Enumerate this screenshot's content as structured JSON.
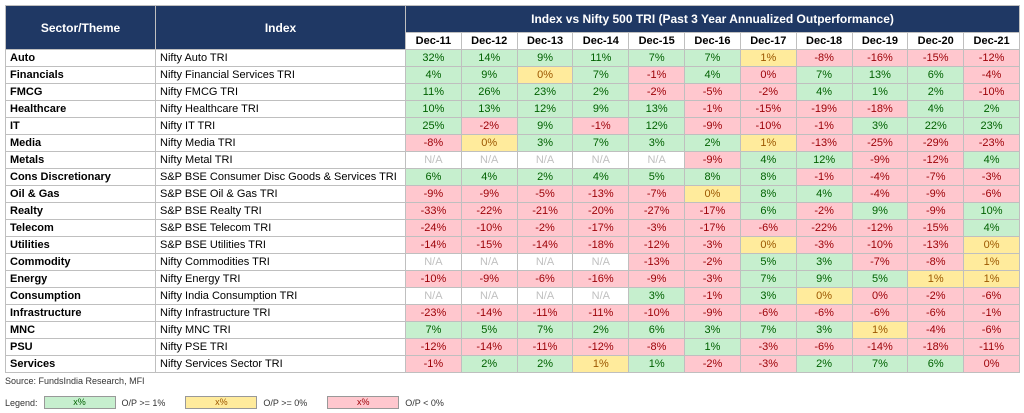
{
  "header": {
    "sector_label": "Sector/Theme",
    "index_label": "Index",
    "group_title": "Index vs Nifty 500 TRI (Past 3 Year Annualized Outperformance)",
    "years": [
      "Dec-11",
      "Dec-12",
      "Dec-13",
      "Dec-14",
      "Dec-15",
      "Dec-16",
      "Dec-17",
      "Dec-18",
      "Dec-19",
      "Dec-20",
      "Dec-21"
    ]
  },
  "rows": [
    {
      "sector": "Auto",
      "index": "Nifty Auto TRI",
      "cells": [
        {
          "text": "32%",
          "shade": "green"
        },
        {
          "text": "14%",
          "shade": "green"
        },
        {
          "text": "9%",
          "shade": "green"
        },
        {
          "text": "11%",
          "shade": "green"
        },
        {
          "text": "7%",
          "shade": "green"
        },
        {
          "text": "7%",
          "shade": "green"
        },
        {
          "text": "1%",
          "shade": "yellow"
        },
        {
          "text": "-8%",
          "shade": "red"
        },
        {
          "text": "-16%",
          "shade": "red"
        },
        {
          "text": "-15%",
          "shade": "red"
        },
        {
          "text": "-12%",
          "shade": "red"
        }
      ]
    },
    {
      "sector": "Financials",
      "index": "Nifty Financial Services TRI",
      "cells": [
        {
          "text": "4%",
          "shade": "green"
        },
        {
          "text": "9%",
          "shade": "green"
        },
        {
          "text": "0%",
          "shade": "yellow"
        },
        {
          "text": "7%",
          "shade": "green"
        },
        {
          "text": "-1%",
          "shade": "red"
        },
        {
          "text": "4%",
          "shade": "green"
        },
        {
          "text": "0%",
          "shade": "red"
        },
        {
          "text": "7%",
          "shade": "green"
        },
        {
          "text": "13%",
          "shade": "green"
        },
        {
          "text": "6%",
          "shade": "green"
        },
        {
          "text": "-4%",
          "shade": "red"
        }
      ]
    },
    {
      "sector": "FMCG",
      "index": "Nifty FMCG TRI",
      "cells": [
        {
          "text": "11%",
          "shade": "green"
        },
        {
          "text": "26%",
          "shade": "green"
        },
        {
          "text": "23%",
          "shade": "green"
        },
        {
          "text": "2%",
          "shade": "green"
        },
        {
          "text": "-2%",
          "shade": "red"
        },
        {
          "text": "-5%",
          "shade": "red"
        },
        {
          "text": "-2%",
          "shade": "red"
        },
        {
          "text": "4%",
          "shade": "green"
        },
        {
          "text": "1%",
          "shade": "green"
        },
        {
          "text": "2%",
          "shade": "green"
        },
        {
          "text": "-10%",
          "shade": "red"
        }
      ]
    },
    {
      "sector": "Healthcare",
      "index": "Nifty Healthcare TRI",
      "cells": [
        {
          "text": "10%",
          "shade": "green"
        },
        {
          "text": "13%",
          "shade": "green"
        },
        {
          "text": "12%",
          "shade": "green"
        },
        {
          "text": "9%",
          "shade": "green"
        },
        {
          "text": "13%",
          "shade": "green"
        },
        {
          "text": "-1%",
          "shade": "red"
        },
        {
          "text": "-15%",
          "shade": "red"
        },
        {
          "text": "-19%",
          "shade": "red"
        },
        {
          "text": "-18%",
          "shade": "red"
        },
        {
          "text": "4%",
          "shade": "green"
        },
        {
          "text": "2%",
          "shade": "green"
        }
      ]
    },
    {
      "sector": "IT",
      "index": "Nifty IT TRI",
      "cells": [
        {
          "text": "25%",
          "shade": "green"
        },
        {
          "text": "-2%",
          "shade": "red"
        },
        {
          "text": "9%",
          "shade": "green"
        },
        {
          "text": "-1%",
          "shade": "red"
        },
        {
          "text": "12%",
          "shade": "green"
        },
        {
          "text": "-9%",
          "shade": "red"
        },
        {
          "text": "-10%",
          "shade": "red"
        },
        {
          "text": "-1%",
          "shade": "red"
        },
        {
          "text": "3%",
          "shade": "green"
        },
        {
          "text": "22%",
          "shade": "green"
        },
        {
          "text": "23%",
          "shade": "green"
        }
      ]
    },
    {
      "sector": "Media",
      "index": "Nifty Media TRI",
      "cells": [
        {
          "text": "-8%",
          "shade": "red"
        },
        {
          "text": "0%",
          "shade": "yellow"
        },
        {
          "text": "3%",
          "shade": "green"
        },
        {
          "text": "7%",
          "shade": "green"
        },
        {
          "text": "3%",
          "shade": "green"
        },
        {
          "text": "2%",
          "shade": "green"
        },
        {
          "text": "1%",
          "shade": "yellow"
        },
        {
          "text": "-13%",
          "shade": "red"
        },
        {
          "text": "-25%",
          "shade": "red"
        },
        {
          "text": "-29%",
          "shade": "red"
        },
        {
          "text": "-23%",
          "shade": "red"
        }
      ]
    },
    {
      "sector": "Metals",
      "index": "Nifty Metal TRI",
      "cells": [
        {
          "text": "N/A",
          "shade": "none"
        },
        {
          "text": "N/A",
          "shade": "none"
        },
        {
          "text": "N/A",
          "shade": "none"
        },
        {
          "text": "N/A",
          "shade": "none"
        },
        {
          "text": "N/A",
          "shade": "none"
        },
        {
          "text": "-9%",
          "shade": "red"
        },
        {
          "text": "4%",
          "shade": "green"
        },
        {
          "text": "12%",
          "shade": "green"
        },
        {
          "text": "-9%",
          "shade": "red"
        },
        {
          "text": "-12%",
          "shade": "red"
        },
        {
          "text": "4%",
          "shade": "green"
        }
      ]
    },
    {
      "sector": "Cons Discretionary",
      "index": "S&P BSE Consumer Disc Goods & Services TRI",
      "cells": [
        {
          "text": "6%",
          "shade": "green"
        },
        {
          "text": "4%",
          "shade": "green"
        },
        {
          "text": "2%",
          "shade": "green"
        },
        {
          "text": "4%",
          "shade": "green"
        },
        {
          "text": "5%",
          "shade": "green"
        },
        {
          "text": "8%",
          "shade": "green"
        },
        {
          "text": "8%",
          "shade": "green"
        },
        {
          "text": "-1%",
          "shade": "red"
        },
        {
          "text": "-4%",
          "shade": "red"
        },
        {
          "text": "-7%",
          "shade": "red"
        },
        {
          "text": "-3%",
          "shade": "red"
        }
      ]
    },
    {
      "sector": "Oil & Gas",
      "index": "S&P BSE Oil & Gas TRI",
      "cells": [
        {
          "text": "-9%",
          "shade": "red"
        },
        {
          "text": "-9%",
          "shade": "red"
        },
        {
          "text": "-5%",
          "shade": "red"
        },
        {
          "text": "-13%",
          "shade": "red"
        },
        {
          "text": "-7%",
          "shade": "red"
        },
        {
          "text": "0%",
          "shade": "yellow"
        },
        {
          "text": "8%",
          "shade": "green"
        },
        {
          "text": "4%",
          "shade": "green"
        },
        {
          "text": "-4%",
          "shade": "red"
        },
        {
          "text": "-9%",
          "shade": "red"
        },
        {
          "text": "-6%",
          "shade": "red"
        }
      ]
    },
    {
      "sector": "Realty",
      "index": "S&P BSE Realty TRI",
      "cells": [
        {
          "text": "-33%",
          "shade": "red"
        },
        {
          "text": "-22%",
          "shade": "red"
        },
        {
          "text": "-21%",
          "shade": "red"
        },
        {
          "text": "-20%",
          "shade": "red"
        },
        {
          "text": "-27%",
          "shade": "red"
        },
        {
          "text": "-17%",
          "shade": "red"
        },
        {
          "text": "6%",
          "shade": "green"
        },
        {
          "text": "-2%",
          "shade": "red"
        },
        {
          "text": "9%",
          "shade": "green"
        },
        {
          "text": "-9%",
          "shade": "red"
        },
        {
          "text": "10%",
          "shade": "green"
        }
      ]
    },
    {
      "sector": "Telecom",
      "index": "S&P BSE Telecom TRI",
      "cells": [
        {
          "text": "-24%",
          "shade": "red"
        },
        {
          "text": "-10%",
          "shade": "red"
        },
        {
          "text": "-2%",
          "shade": "red"
        },
        {
          "text": "-17%",
          "shade": "red"
        },
        {
          "text": "-3%",
          "shade": "red"
        },
        {
          "text": "-17%",
          "shade": "red"
        },
        {
          "text": "-6%",
          "shade": "red"
        },
        {
          "text": "-22%",
          "shade": "red"
        },
        {
          "text": "-12%",
          "shade": "red"
        },
        {
          "text": "-15%",
          "shade": "red"
        },
        {
          "text": "4%",
          "shade": "green"
        }
      ]
    },
    {
      "sector": "Utilities",
      "index": "S&P BSE Utilities TRI",
      "cells": [
        {
          "text": "-14%",
          "shade": "red"
        },
        {
          "text": "-15%",
          "shade": "red"
        },
        {
          "text": "-14%",
          "shade": "red"
        },
        {
          "text": "-18%",
          "shade": "red"
        },
        {
          "text": "-12%",
          "shade": "red"
        },
        {
          "text": "-3%",
          "shade": "red"
        },
        {
          "text": "0%",
          "shade": "yellow"
        },
        {
          "text": "-3%",
          "shade": "red"
        },
        {
          "text": "-10%",
          "shade": "red"
        },
        {
          "text": "-13%",
          "shade": "red"
        },
        {
          "text": "0%",
          "shade": "yellow"
        }
      ]
    },
    {
      "sector": "Commodity",
      "index": "Nifty Commodities TRI",
      "cells": [
        {
          "text": "N/A",
          "shade": "none"
        },
        {
          "text": "N/A",
          "shade": "none"
        },
        {
          "text": "N/A",
          "shade": "none"
        },
        {
          "text": "N/A",
          "shade": "none"
        },
        {
          "text": "-13%",
          "shade": "red"
        },
        {
          "text": "-2%",
          "shade": "red"
        },
        {
          "text": "5%",
          "shade": "green"
        },
        {
          "text": "3%",
          "shade": "green"
        },
        {
          "text": "-7%",
          "shade": "red"
        },
        {
          "text": "-8%",
          "shade": "red"
        },
        {
          "text": "1%",
          "shade": "yellow"
        }
      ]
    },
    {
      "sector": "Energy",
      "index": "Nifty Energy TRI",
      "cells": [
        {
          "text": "-10%",
          "shade": "red"
        },
        {
          "text": "-9%",
          "shade": "red"
        },
        {
          "text": "-6%",
          "shade": "red"
        },
        {
          "text": "-16%",
          "shade": "red"
        },
        {
          "text": "-9%",
          "shade": "red"
        },
        {
          "text": "-3%",
          "shade": "red"
        },
        {
          "text": "7%",
          "shade": "green"
        },
        {
          "text": "9%",
          "shade": "green"
        },
        {
          "text": "5%",
          "shade": "green"
        },
        {
          "text": "1%",
          "shade": "yellow"
        },
        {
          "text": "1%",
          "shade": "yellow"
        }
      ]
    },
    {
      "sector": "Consumption",
      "index": "Nifty India Consumption TRI",
      "cells": [
        {
          "text": "N/A",
          "shade": "none"
        },
        {
          "text": "N/A",
          "shade": "none"
        },
        {
          "text": "N/A",
          "shade": "none"
        },
        {
          "text": "N/A",
          "shade": "none"
        },
        {
          "text": "3%",
          "shade": "green"
        },
        {
          "text": "-1%",
          "shade": "red"
        },
        {
          "text": "3%",
          "shade": "green"
        },
        {
          "text": "0%",
          "shade": "yellow"
        },
        {
          "text": "0%",
          "shade": "red"
        },
        {
          "text": "-2%",
          "shade": "red"
        },
        {
          "text": "-6%",
          "shade": "red"
        }
      ]
    },
    {
      "sector": "Infrastructure",
      "index": "Nifty Infrastructure TRI",
      "cells": [
        {
          "text": "-23%",
          "shade": "red"
        },
        {
          "text": "-14%",
          "shade": "red"
        },
        {
          "text": "-11%",
          "shade": "red"
        },
        {
          "text": "-11%",
          "shade": "red"
        },
        {
          "text": "-10%",
          "shade": "red"
        },
        {
          "text": "-9%",
          "shade": "red"
        },
        {
          "text": "-6%",
          "shade": "red"
        },
        {
          "text": "-6%",
          "shade": "red"
        },
        {
          "text": "-6%",
          "shade": "red"
        },
        {
          "text": "-6%",
          "shade": "red"
        },
        {
          "text": "-1%",
          "shade": "red"
        }
      ]
    },
    {
      "sector": "MNC",
      "index": "Nifty MNC TRI",
      "cells": [
        {
          "text": "7%",
          "shade": "green"
        },
        {
          "text": "5%",
          "shade": "green"
        },
        {
          "text": "7%",
          "shade": "green"
        },
        {
          "text": "2%",
          "shade": "green"
        },
        {
          "text": "6%",
          "shade": "green"
        },
        {
          "text": "3%",
          "shade": "green"
        },
        {
          "text": "7%",
          "shade": "green"
        },
        {
          "text": "3%",
          "shade": "green"
        },
        {
          "text": "1%",
          "shade": "yellow"
        },
        {
          "text": "-4%",
          "shade": "red"
        },
        {
          "text": "-6%",
          "shade": "red"
        }
      ]
    },
    {
      "sector": "PSU",
      "index": "Nifty PSE TRI",
      "cells": [
        {
          "text": "-12%",
          "shade": "red"
        },
        {
          "text": "-14%",
          "shade": "red"
        },
        {
          "text": "-11%",
          "shade": "red"
        },
        {
          "text": "-12%",
          "shade": "red"
        },
        {
          "text": "-8%",
          "shade": "red"
        },
        {
          "text": "1%",
          "shade": "green"
        },
        {
          "text": "-3%",
          "shade": "red"
        },
        {
          "text": "-6%",
          "shade": "red"
        },
        {
          "text": "-14%",
          "shade": "red"
        },
        {
          "text": "-18%",
          "shade": "red"
        },
        {
          "text": "-11%",
          "shade": "red"
        }
      ]
    },
    {
      "sector": "Services",
      "index": "Nifty Services Sector TRI",
      "cells": [
        {
          "text": "-1%",
          "shade": "red"
        },
        {
          "text": "2%",
          "shade": "green"
        },
        {
          "text": "2%",
          "shade": "green"
        },
        {
          "text": "1%",
          "shade": "yellow"
        },
        {
          "text": "1%",
          "shade": "green"
        },
        {
          "text": "-2%",
          "shade": "red"
        },
        {
          "text": "-3%",
          "shade": "red"
        },
        {
          "text": "2%",
          "shade": "green"
        },
        {
          "text": "7%",
          "shade": "green"
        },
        {
          "text": "6%",
          "shade": "green"
        },
        {
          "text": "0%",
          "shade": "red"
        }
      ]
    }
  ],
  "source": "Source: FundsIndia Research, MFI",
  "legend": {
    "label": "Legend:",
    "items": [
      {
        "sample": "x%",
        "text": "O/P >= 1%",
        "shade": "green"
      },
      {
        "sample": "x%",
        "text": "O/P >= 0%",
        "shade": "yellow"
      },
      {
        "sample": "x%",
        "text": "O/P < 0%",
        "shade": "red"
      }
    ]
  }
}
